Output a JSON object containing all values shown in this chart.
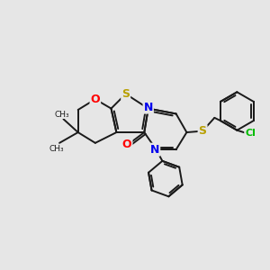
{
  "bg_color": "#e6e6e6",
  "bond_color": "#1a1a1a",
  "atom_colors": {
    "S": "#b8a000",
    "O": "#ff0000",
    "N": "#0000ee",
    "Cl": "#00bb00"
  },
  "lw": 1.4
}
